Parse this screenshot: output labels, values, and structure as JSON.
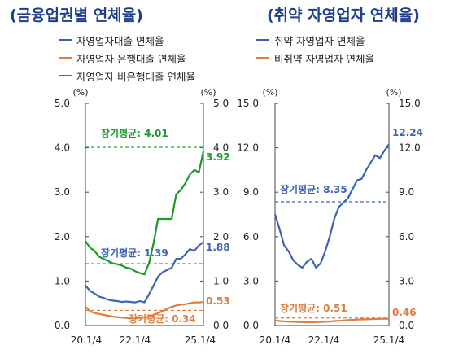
{
  "colors": {
    "blue": "#3d63b8",
    "orange": "#e07c3c",
    "green": "#1a9a2a",
    "title": "#1f3f8a"
  },
  "chart_data": [
    {
      "type": "line",
      "title": "(금융업권별 연체율)",
      "unit_left": "(%)",
      "unit_right": "(%)",
      "ylim": [
        0,
        5
      ],
      "y_ticks": [
        "0.0",
        "1.0",
        "2.0",
        "3.0",
        "4.0",
        "5.0"
      ],
      "x_ticks": [
        "20.1/4",
        "22.1/4",
        "25.1/4"
      ],
      "legend_position": "top",
      "series": [
        {
          "name": "자영업자대출 연체율",
          "color": "blue",
          "values": [
            0.9,
            0.78,
            0.72,
            0.65,
            0.62,
            0.58,
            0.56,
            0.55,
            0.53,
            0.54,
            0.53,
            0.52,
            0.55,
            0.52,
            0.7,
            0.9,
            1.1,
            1.2,
            1.25,
            1.3,
            1.5,
            1.5,
            1.6,
            1.72,
            1.68,
            1.8,
            1.88
          ]
        },
        {
          "name": "자영업자 은행대출 연체율",
          "color": "orange",
          "values": [
            0.42,
            0.32,
            0.28,
            0.26,
            0.24,
            0.22,
            0.2,
            0.19,
            0.18,
            0.17,
            0.16,
            0.16,
            0.17,
            0.18,
            0.2,
            0.24,
            0.28,
            0.32,
            0.38,
            0.42,
            0.45,
            0.47,
            0.48,
            0.5,
            0.52,
            0.52,
            0.53
          ]
        },
        {
          "name": "자영업자 비은행대출 연체율",
          "color": "green",
          "values": [
            1.9,
            1.75,
            1.68,
            1.55,
            1.5,
            1.45,
            1.4,
            1.38,
            1.35,
            1.3,
            1.28,
            1.22,
            1.18,
            1.15,
            1.4,
            1.85,
            2.4,
            2.4,
            2.4,
            2.4,
            2.95,
            3.05,
            3.2,
            3.4,
            3.5,
            3.45,
            3.92
          ]
        }
      ],
      "end_labels": [
        "3.92",
        "1.88",
        "0.53"
      ],
      "averages": [
        {
          "label": "장기평균: 4.01",
          "value": 4.01,
          "color": "green"
        },
        {
          "label": "장기평균: 1.39",
          "value": 1.39,
          "color": "blue"
        },
        {
          "label": "장기평균: 0.34",
          "value": 0.34,
          "color": "orange"
        }
      ]
    },
    {
      "type": "line",
      "title": "(취약 자영업자 연체율)",
      "unit_left": "(%)",
      "unit_right": "(%)",
      "ylim": [
        0,
        15
      ],
      "y_ticks": [
        "0.0",
        "3.0",
        "6.0",
        "9.0",
        "12.0",
        "15.0"
      ],
      "x_ticks": [
        "20.1/4",
        "22.1/4",
        "25.1/4"
      ],
      "legend_position": "top",
      "series": [
        {
          "name": "취약 자영업자 연체율",
          "color": "blue",
          "values": [
            7.5,
            6.5,
            5.4,
            5.0,
            4.4,
            4.1,
            3.9,
            4.3,
            4.5,
            3.9,
            4.2,
            5.0,
            6.0,
            7.2,
            8.0,
            8.3,
            8.6,
            9.2,
            9.8,
            9.9,
            10.5,
            11.0,
            11.5,
            11.3,
            11.8,
            12.24
          ]
        },
        {
          "name": "비취약 자영업자 연체율",
          "color": "orange",
          "values": [
            0.35,
            0.3,
            0.28,
            0.26,
            0.25,
            0.24,
            0.23,
            0.22,
            0.22,
            0.23,
            0.24,
            0.25,
            0.27,
            0.3,
            0.32,
            0.34,
            0.36,
            0.38,
            0.4,
            0.41,
            0.42,
            0.43,
            0.44,
            0.45,
            0.45,
            0.46
          ]
        }
      ],
      "end_labels": [
        "12.24",
        "0.46"
      ],
      "averages": [
        {
          "label": "장기평균: 8.35",
          "value": 8.35,
          "color": "blue"
        },
        {
          "label": "장기평균: 0.51",
          "value": 0.51,
          "color": "orange"
        }
      ]
    }
  ]
}
